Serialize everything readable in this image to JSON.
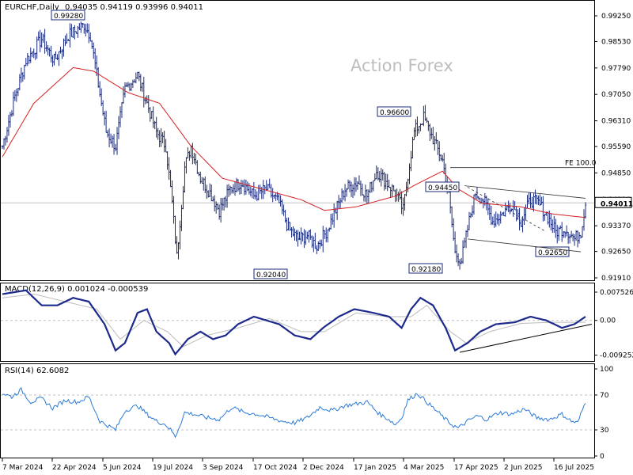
{
  "header": {
    "symbol_line": "EURCHF,Daily",
    "ohlc": "0.94035 0.94119 0.93996 0.94011",
    "watermark": "Action Forex"
  },
  "colors": {
    "price_bars": "#1a2a7a",
    "ma_line": "#d42020",
    "macd_line": "#1c2a8c",
    "macd_signal": "#bbbbbb",
    "rsi_line": "#2a7ad8",
    "trendline": "#000000",
    "grid": "#c0c0c0"
  },
  "chart_data": [
    {
      "type": "candlestick",
      "panel": "price",
      "symbol": "EURCHF",
      "timeframe": "Daily",
      "ylim": [
        0.9191,
        0.9925
      ],
      "y_ticks": [
        "0.99250",
        "0.98530",
        "0.97790",
        "0.97050",
        "0.96310",
        "0.95590",
        "0.94850",
        "0.94110",
        "0.93370",
        "0.92650",
        "0.91910"
      ],
      "x_ticks": [
        "7 Mar 2024",
        "22 Apr 2024",
        "5 Jun 2024",
        "19 Jul 2024",
        "3 Sep 2024",
        "17 Oct 2024",
        "2 Dec 2024",
        "17 Jan 2025",
        "4 Mar 2025",
        "17 Apr 2025",
        "2 Jun 2025",
        "16 Jul 2025"
      ],
      "close_anchors": [
        [
          0,
          0.956
        ],
        [
          8,
          0.97
        ],
        [
          15,
          0.98
        ],
        [
          25,
          0.986
        ],
        [
          33,
          0.98
        ],
        [
          42,
          0.987
        ],
        [
          52,
          0.99
        ],
        [
          56,
          0.987
        ],
        [
          60,
          0.976
        ],
        [
          66,
          0.96
        ],
        [
          72,
          0.956
        ],
        [
          78,
          0.972
        ],
        [
          86,
          0.976
        ],
        [
          92,
          0.968
        ],
        [
          98,
          0.96
        ],
        [
          104,
          0.956
        ],
        [
          108,
          0.94
        ],
        [
          111,
          0.925
        ],
        [
          116,
          0.95
        ],
        [
          120,
          0.956
        ],
        [
          126,
          0.947
        ],
        [
          132,
          0.943
        ],
        [
          138,
          0.938
        ],
        [
          145,
          0.944
        ],
        [
          152,
          0.946
        ],
        [
          160,
          0.942
        ],
        [
          168,
          0.944
        ],
        [
          176,
          0.94
        ],
        [
          182,
          0.933
        ],
        [
          188,
          0.93
        ],
        [
          194,
          0.931
        ],
        [
          200,
          0.928
        ],
        [
          206,
          0.932
        ],
        [
          212,
          0.938
        ],
        [
          218,
          0.944
        ],
        [
          226,
          0.946
        ],
        [
          232,
          0.942
        ],
        [
          238,
          0.949
        ],
        [
          244,
          0.946
        ],
        [
          250,
          0.943
        ],
        [
          255,
          0.938
        ],
        [
          258,
          0.948
        ],
        [
          262,
          0.96
        ],
        [
          268,
          0.964
        ],
        [
          274,
          0.958
        ],
        [
          280,
          0.952
        ],
        [
          284,
          0.942
        ],
        [
          288,
          0.926
        ],
        [
          292,
          0.924
        ],
        [
          297,
          0.935
        ],
        [
          301,
          0.943
        ],
        [
          306,
          0.941
        ],
        [
          312,
          0.935
        ],
        [
          318,
          0.937
        ],
        [
          324,
          0.94
        ],
        [
          330,
          0.935
        ],
        [
          336,
          0.941
        ],
        [
          341,
          0.94
        ],
        [
          346,
          0.937
        ],
        [
          352,
          0.932
        ],
        [
          358,
          0.933
        ],
        [
          364,
          0.93
        ],
        [
          368,
          0.932
        ],
        [
          371,
          0.9401
        ]
      ],
      "moving_average_anchors": [
        [
          0,
          0.953
        ],
        [
          20,
          0.968
        ],
        [
          45,
          0.978
        ],
        [
          58,
          0.977
        ],
        [
          80,
          0.971
        ],
        [
          100,
          0.968
        ],
        [
          120,
          0.956
        ],
        [
          140,
          0.947
        ],
        [
          165,
          0.944
        ],
        [
          190,
          0.941
        ],
        [
          205,
          0.938
        ],
        [
          225,
          0.939
        ],
        [
          250,
          0.942
        ],
        [
          262,
          0.945
        ],
        [
          280,
          0.949
        ],
        [
          290,
          0.944
        ],
        [
          305,
          0.94
        ],
        [
          330,
          0.939
        ],
        [
          350,
          0.937
        ],
        [
          371,
          0.936
        ]
      ],
      "last_price": "0.94011",
      "annotations": [
        {
          "label": "0.99280",
          "value": 0.9928
        },
        {
          "label": "0.92040",
          "value": 0.9204
        },
        {
          "label": "0.96600",
          "value": 0.966
        },
        {
          "label": "0.94450",
          "value": 0.9445
        },
        {
          "label": "0.92180",
          "value": 0.9218
        },
        {
          "label": "0.92650",
          "value": 0.9265
        },
        {
          "label": "FE 100.0",
          "value": 0.95
        }
      ]
    },
    {
      "type": "line",
      "panel": "macd",
      "title": "MACD(12,26,9) 0.001024 -0.000539",
      "ylim": [
        -0.0106,
        0.009
      ],
      "y_ticks": [
        "0.007526",
        "0.00",
        "-0.009252"
      ],
      "macd_anchors": [
        [
          0,
          0.007
        ],
        [
          15,
          0.008
        ],
        [
          25,
          0.004
        ],
        [
          35,
          0.004
        ],
        [
          45,
          0.006
        ],
        [
          55,
          0.005
        ],
        [
          65,
          -0.001
        ],
        [
          72,
          -0.008
        ],
        [
          78,
          -0.006
        ],
        [
          86,
          0.002
        ],
        [
          92,
          0.003
        ],
        [
          98,
          -0.003
        ],
        [
          106,
          -0.006
        ],
        [
          110,
          -0.009
        ],
        [
          118,
          -0.005
        ],
        [
          126,
          -0.003
        ],
        [
          134,
          -0.005
        ],
        [
          142,
          -0.004
        ],
        [
          150,
          -0.001
        ],
        [
          160,
          0.001
        ],
        [
          168,
          0.0
        ],
        [
          176,
          -0.001
        ],
        [
          186,
          -0.004
        ],
        [
          196,
          -0.005
        ],
        [
          204,
          -0.002
        ],
        [
          214,
          0.001
        ],
        [
          224,
          0.003
        ],
        [
          236,
          0.002
        ],
        [
          246,
          0.001
        ],
        [
          254,
          -0.002
        ],
        [
          260,
          0.003
        ],
        [
          266,
          0.006
        ],
        [
          274,
          0.004
        ],
        [
          282,
          -0.002
        ],
        [
          288,
          -0.008
        ],
        [
          296,
          -0.006
        ],
        [
          304,
          -0.003
        ],
        [
          314,
          -0.001
        ],
        [
          326,
          -0.0005
        ],
        [
          336,
          0.001
        ],
        [
          346,
          0.0
        ],
        [
          356,
          -0.002
        ],
        [
          364,
          -0.001
        ],
        [
          371,
          0.001
        ]
      ],
      "signal_anchors": [
        [
          0,
          0.006
        ],
        [
          20,
          0.007
        ],
        [
          40,
          0.005
        ],
        [
          60,
          0.003
        ],
        [
          75,
          -0.005
        ],
        [
          90,
          0.0
        ],
        [
          105,
          -0.003
        ],
        [
          115,
          -0.007
        ],
        [
          130,
          -0.004
        ],
        [
          150,
          -0.002
        ],
        [
          170,
          0.0005
        ],
        [
          190,
          -0.003
        ],
        [
          205,
          -0.003
        ],
        [
          225,
          0.002
        ],
        [
          245,
          0.001
        ],
        [
          260,
          0.001
        ],
        [
          270,
          0.004
        ],
        [
          285,
          -0.003
        ],
        [
          295,
          -0.006
        ],
        [
          310,
          -0.003
        ],
        [
          330,
          -0.0008
        ],
        [
          350,
          -0.0005
        ],
        [
          371,
          -0.0005
        ]
      ],
      "trendline": {
        "from": [
          291,
          -0.0085
        ],
        "to": [
          376,
          -0.001
        ]
      }
    },
    {
      "type": "line",
      "panel": "rsi",
      "title": "RSI(14) 62.6082",
      "ylim": [
        0,
        100
      ],
      "y_ticks": [
        "100",
        "70",
        "30",
        "0"
      ],
      "levels": [
        70,
        30
      ],
      "rsi_anchors": [
        [
          0,
          72
        ],
        [
          6,
          68
        ],
        [
          12,
          76
        ],
        [
          18,
          62
        ],
        [
          25,
          66
        ],
        [
          32,
          55
        ],
        [
          40,
          64
        ],
        [
          48,
          62
        ],
        [
          55,
          68
        ],
        [
          58,
          56
        ],
        [
          62,
          40
        ],
        [
          68,
          34
        ],
        [
          72,
          30
        ],
        [
          78,
          52
        ],
        [
          86,
          58
        ],
        [
          92,
          48
        ],
        [
          98,
          40
        ],
        [
          104,
          36
        ],
        [
          108,
          28
        ],
        [
          110,
          22
        ],
        [
          116,
          50
        ],
        [
          122,
          48
        ],
        [
          130,
          44
        ],
        [
          138,
          42
        ],
        [
          146,
          56
        ],
        [
          154,
          50
        ],
        [
          162,
          48
        ],
        [
          170,
          44
        ],
        [
          178,
          40
        ],
        [
          186,
          38
        ],
        [
          194,
          44
        ],
        [
          202,
          56
        ],
        [
          210,
          52
        ],
        [
          218,
          58
        ],
        [
          226,
          60
        ],
        [
          232,
          62
        ],
        [
          240,
          48
        ],
        [
          246,
          42
        ],
        [
          250,
          36
        ],
        [
          254,
          44
        ],
        [
          258,
          64
        ],
        [
          264,
          72
        ],
        [
          270,
          62
        ],
        [
          276,
          52
        ],
        [
          282,
          42
        ],
        [
          286,
          36
        ],
        [
          290,
          32
        ],
        [
          296,
          40
        ],
        [
          302,
          46
        ],
        [
          308,
          42
        ],
        [
          316,
          50
        ],
        [
          324,
          48
        ],
        [
          332,
          54
        ],
        [
          340,
          44
        ],
        [
          348,
          42
        ],
        [
          356,
          48
        ],
        [
          362,
          40
        ],
        [
          366,
          38
        ],
        [
          371,
          62.6
        ]
      ]
    }
  ]
}
